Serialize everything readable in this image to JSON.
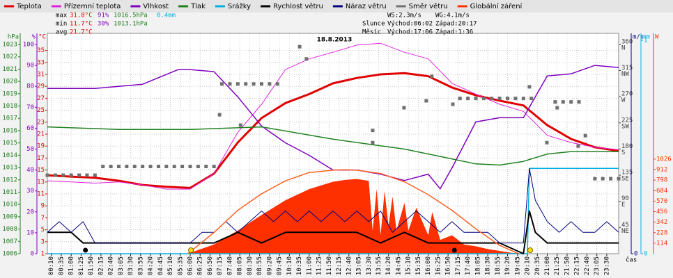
{
  "chart_data": {
    "type": "line",
    "title": "18.8.2013",
    "xlabel": "čas",
    "xlim": [
      0,
      1440
    ],
    "grid": true,
    "xticks": [
      {
        "value": 10,
        "label": "00:10"
      },
      {
        "value": 35,
        "label": "00:35"
      },
      {
        "value": 60,
        "label": "01:00"
      },
      {
        "value": 85,
        "label": "01:25"
      },
      {
        "value": 110,
        "label": "01:50"
      },
      {
        "value": 135,
        "label": "02:15"
      },
      {
        "value": 160,
        "label": "02:40"
      },
      {
        "value": 185,
        "label": "03:05"
      },
      {
        "value": 210,
        "label": "03:30"
      },
      {
        "value": 235,
        "label": "03:55"
      },
      {
        "value": 260,
        "label": "04:20"
      },
      {
        "value": 285,
        "label": "04:45"
      },
      {
        "value": 310,
        "label": "05:10"
      },
      {
        "value": 335,
        "label": "05:35"
      },
      {
        "value": 360,
        "label": "06:00"
      },
      {
        "value": 385,
        "label": "06:25"
      },
      {
        "value": 410,
        "label": "06:50"
      },
      {
        "value": 435,
        "label": "07:15"
      },
      {
        "value": 460,
        "label": "07:40"
      },
      {
        "value": 485,
        "label": "08:05"
      },
      {
        "value": 510,
        "label": "08:30"
      },
      {
        "value": 535,
        "label": "08:55"
      },
      {
        "value": 560,
        "label": "09:20"
      },
      {
        "value": 585,
        "label": "09:45"
      },
      {
        "value": 610,
        "label": "10:10"
      },
      {
        "value": 635,
        "label": "10:35"
      },
      {
        "value": 660,
        "label": "11:00"
      },
      {
        "value": 685,
        "label": "11:25"
      },
      {
        "value": 710,
        "label": "11:50"
      },
      {
        "value": 735,
        "label": "12:15"
      },
      {
        "value": 760,
        "label": "12:40"
      },
      {
        "value": 785,
        "label": "13:05"
      },
      {
        "value": 810,
        "label": "13:30"
      },
      {
        "value": 835,
        "label": "13:55"
      },
      {
        "value": 860,
        "label": "14:20"
      },
      {
        "value": 885,
        "label": "14:45"
      },
      {
        "value": 910,
        "label": "15:10"
      },
      {
        "value": 935,
        "label": "15:35"
      },
      {
        "value": 960,
        "label": "16:00"
      },
      {
        "value": 985,
        "label": "16:25"
      },
      {
        "value": 1010,
        "label": "16:50"
      },
      {
        "value": 1035,
        "label": "17:15"
      },
      {
        "value": 1060,
        "label": "17:40"
      },
      {
        "value": 1085,
        "label": "18:05"
      },
      {
        "value": 1110,
        "label": "18:30"
      },
      {
        "value": 1135,
        "label": "18:55"
      },
      {
        "value": 1160,
        "label": "19:20"
      },
      {
        "value": 1185,
        "label": "19:45"
      },
      {
        "value": 1210,
        "label": "20:10"
      },
      {
        "value": 1235,
        "label": "20:35"
      },
      {
        "value": 1260,
        "label": "21:00"
      },
      {
        "value": 1285,
        "label": "21:25"
      },
      {
        "value": 1310,
        "label": "21:50"
      },
      {
        "value": 1335,
        "label": "22:15"
      },
      {
        "value": 1360,
        "label": "22:40"
      },
      {
        "value": 1385,
        "label": "23:05"
      },
      {
        "value": 1410,
        "label": "23:30"
      }
    ],
    "axes": {
      "press": {
        "label": "hPa",
        "color": "#208020",
        "ylim": [
          1006,
          1023.34
        ],
        "yticks": [
          1006,
          1007,
          1008,
          1009,
          1010,
          1011,
          1012,
          1013,
          1014,
          1015,
          1016,
          1017,
          1018,
          1019,
          1020,
          1021,
          1022,
          1023
        ]
      },
      "hum": {
        "label": "%",
        "color": "#8000c0",
        "ylim": [
          0,
          102
        ],
        "yticks": [
          0,
          10,
          20,
          30,
          40,
          50,
          60,
          70,
          80,
          90,
          100
        ]
      },
      "temp": {
        "label": "°C",
        "color": "#e00000",
        "ylim": [
          1,
          36.7
        ],
        "yticks": [
          1,
          3,
          5,
          7,
          9,
          11,
          13,
          15,
          17,
          19,
          21,
          23,
          25,
          27,
          29,
          31,
          33,
          35
        ]
      },
      "dir": {
        "color": "#404040",
        "ylim": [
          0,
          367
        ],
        "yticks": [
          45,
          90,
          135,
          180,
          225,
          270,
          315,
          360
        ],
        "compass": [
          "NE",
          "E",
          "SE",
          "S",
          "SW",
          "W",
          "NW",
          "N"
        ]
      },
      "wind": {
        "label": "m/s",
        "color": "#000080",
        "ylim": [
          0,
          20
        ],
        "yticks": [
          0
        ]
      },
      "rain": {
        "label": "mm",
        "color": "#00b0e0",
        "ylim": [
          0,
          1
        ],
        "yticks": [
          0,
          1
        ]
      },
      "rad": {
        "label": "W",
        "color": "#ff3000",
        "ylim": [
          0,
          2314
        ],
        "yticks": [
          114,
          228,
          342,
          456,
          570,
          684,
          798,
          912,
          1026
        ]
      }
    },
    "series": [
      {
        "name": "Teplota",
        "color": "#e00000",
        "axis": "temp",
        "style": "line",
        "width": 3,
        "x": [
          0,
          60,
          120,
          180,
          240,
          300,
          360,
          420,
          480,
          540,
          600,
          660,
          720,
          780,
          840,
          900,
          960,
          1020,
          1080,
          1140,
          1200,
          1260,
          1320,
          1380,
          1440
        ],
        "values": [
          14.1,
          13.9,
          13.7,
          13.2,
          12.5,
          12.2,
          12.0,
          14.4,
          19.6,
          23.7,
          26.2,
          27.7,
          29.5,
          30.4,
          31.0,
          31.2,
          30.7,
          28.8,
          27.5,
          26.6,
          25.8,
          22.5,
          20.2,
          18.8,
          18.2
        ]
      },
      {
        "name": "Přízemní teplota",
        "color": "#e020e0",
        "axis": "temp",
        "style": "line",
        "width": 1,
        "x": [
          0,
          60,
          120,
          180,
          240,
          300,
          360,
          420,
          480,
          540,
          600,
          660,
          720,
          780,
          840,
          900,
          960,
          1020,
          1080,
          1140,
          1200,
          1260,
          1320,
          1380,
          1440
        ],
        "values": [
          13.2,
          13.0,
          12.8,
          13.0,
          12.5,
          11.8,
          11.8,
          14.4,
          21.3,
          26.0,
          31.8,
          33.6,
          34.7,
          35.9,
          36.2,
          34.7,
          33.6,
          29.5,
          27.7,
          26.0,
          24.8,
          20.8,
          19.6,
          18.8,
          18.4
        ]
      },
      {
        "name": "Vlhkost",
        "color": "#8000c0",
        "axis": "hum",
        "style": "line",
        "width": 1.5,
        "x": [
          0,
          120,
          240,
          330,
          360,
          420,
          480,
          510,
          540,
          600,
          660,
          720,
          780,
          840,
          900,
          960,
          990,
          1020,
          1080,
          1140,
          1200,
          1230,
          1260,
          1320,
          1380,
          1440
        ],
        "values": [
          79,
          79,
          81,
          88,
          88,
          87,
          75,
          68,
          61,
          53,
          47,
          40,
          40,
          38,
          35,
          38,
          31,
          41,
          63,
          65,
          65,
          75,
          85,
          86,
          90,
          89
        ]
      },
      {
        "name": "Tlak",
        "color": "#208020",
        "axis": "press",
        "style": "line",
        "width": 1.5,
        "x": [
          0,
          180,
          360,
          540,
          720,
          900,
          1080,
          1140,
          1200,
          1260,
          1320,
          1440
        ],
        "values": [
          1016.3,
          1016.1,
          1016.1,
          1016.3,
          1015.3,
          1014.5,
          1013.3,
          1013.2,
          1013.5,
          1014.1,
          1014.3,
          1014.3
        ]
      },
      {
        "name": "Srážky",
        "color": "#00b0e0",
        "axis": "rain",
        "style": "line",
        "width": 1.5,
        "x": [
          0,
          1210,
          1215,
          1440
        ],
        "values": [
          0,
          0,
          0.4,
          0.4
        ]
      },
      {
        "name": "Rychlost větru",
        "color": "#000000",
        "axis": "wind",
        "style": "line",
        "width": 2,
        "x": [
          0,
          60,
          90,
          120,
          180,
          240,
          300,
          360,
          420,
          480,
          540,
          600,
          660,
          720,
          780,
          840,
          900,
          960,
          1020,
          1080,
          1140,
          1200,
          1215,
          1230,
          1260,
          1320,
          1380,
          1440
        ],
        "values": [
          2,
          2,
          1,
          1,
          1,
          1,
          1,
          1,
          1,
          2,
          1,
          2,
          2,
          2,
          2,
          1,
          2,
          1,
          1,
          1,
          1,
          0,
          4,
          2,
          1,
          1,
          1,
          1
        ]
      },
      {
        "name": "Náraz větru",
        "color": "#000080",
        "axis": "wind",
        "style": "line",
        "width": 1,
        "x": [
          0,
          30,
          60,
          90,
          120,
          150,
          180,
          210,
          240,
          270,
          300,
          330,
          360,
          390,
          420,
          450,
          480,
          510,
          540,
          570,
          600,
          630,
          660,
          690,
          720,
          750,
          780,
          810,
          840,
          870,
          900,
          930,
          960,
          990,
          1020,
          1050,
          1080,
          1110,
          1140,
          1170,
          1200,
          1215,
          1230,
          1260,
          1290,
          1320,
          1350,
          1380,
          1410,
          1440
        ],
        "values": [
          2,
          3,
          2,
          3,
          1,
          1,
          1,
          1,
          1,
          1,
          1,
          1,
          1,
          2,
          2,
          3,
          2,
          3,
          4,
          3,
          4,
          3,
          4,
          3,
          4,
          3,
          4,
          3,
          4,
          2,
          3,
          4,
          3,
          2,
          3,
          2,
          2,
          2,
          1,
          1,
          1,
          8,
          5,
          3,
          2,
          3,
          2,
          2,
          3,
          2
        ]
      },
      {
        "name": "Směr větru",
        "color": "#707070",
        "axis": "dir",
        "style": "points",
        "x": [
          0,
          20,
          40,
          60,
          80,
          100,
          120,
          140,
          160,
          180,
          200,
          220,
          240,
          260,
          280,
          300,
          320,
          340,
          360,
          380,
          400,
          420,
          434,
          440,
          460,
          480,
          487,
          500,
          520,
          540,
          560,
          580,
          636,
          653,
          820,
          820,
          899,
          955,
          969,
          1022,
          1040,
          1060,
          1080,
          1100,
          1120,
          1140,
          1160,
          1180,
          1200,
          1215,
          1220,
          1259,
          1280,
          1285,
          1300,
          1320,
          1338,
          1340,
          1356,
          1380,
          1400,
          1420,
          1440
        ],
        "values": [
          135,
          135,
          135,
          135,
          135,
          135,
          135,
          150,
          150,
          150,
          150,
          150,
          150,
          150,
          150,
          150,
          150,
          150,
          150,
          150,
          150,
          150,
          239,
          292,
          292,
          292,
          221,
          292,
          292,
          292,
          292,
          292,
          356,
          335,
          212,
          191,
          251,
          263,
          305,
          257,
          267,
          267,
          267,
          267,
          267,
          267,
          267,
          267,
          267,
          287,
          267,
          191,
          261,
          251,
          261,
          261,
          185,
          261,
          203,
          129,
          129,
          129,
          129
        ]
      },
      {
        "name": "Globální záření",
        "color": "#ff3000",
        "axis": "rad",
        "style": "area",
        "x": [
          348,
          360,
          420,
          480,
          540,
          600,
          660,
          720,
          750,
          780,
          810,
          820,
          830,
          840,
          850,
          860,
          870,
          880,
          900,
          910,
          930,
          960,
          970,
          990,
          1020,
          1050,
          1080,
          1110,
          1140,
          1170,
          1200
        ],
        "values": [
          0,
          10,
          100,
          250,
          420,
          580,
          700,
          780,
          800,
          810,
          790,
          250,
          700,
          200,
          680,
          300,
          620,
          250,
          550,
          250,
          500,
          200,
          450,
          150,
          200,
          100,
          80,
          50,
          30,
          10,
          0
        ]
      },
      {
        "color": "#ff6020",
        "axis": "rad",
        "style": "line",
        "width": 1.5,
        "x": [
          354,
          420,
          480,
          540,
          600,
          660,
          720,
          750,
          780,
          840,
          900,
          960,
          1020,
          1080,
          1140,
          1188
        ],
        "values": [
          0,
          230,
          470,
          650,
          790,
          880,
          905,
          910,
          905,
          870,
          780,
          640,
          470,
          270,
          90,
          0
        ]
      }
    ],
    "sun_x": [
      362,
      1217
    ],
    "sun_color": "#ffe000",
    "moon_x": [
      96,
      1026
    ],
    "moon_color": "#000000",
    "stats": {
      "rows": [
        [
          "max",
          "31.8°C",
          "91%",
          "1016.5hPa",
          "0.4mm"
        ],
        [
          "min",
          "11.7°C",
          "30%",
          "1013.1hPa"
        ],
        [
          "avg",
          "21.7°C"
        ]
      ],
      "colors": [
        "#000000",
        "#e00000",
        "#8000c0",
        "#208020",
        "#00b0e0"
      ],
      "info": [
        [
          "WS:2.3m/s",
          "WG:4.1m/s"
        ],
        [
          "Slunce",
          "Východ:06:02",
          "Západ:20:17"
        ],
        [
          "Měsíc",
          "Východ:17:06",
          "Západ:1:36"
        ]
      ],
      "info_color": "#000000"
    }
  }
}
